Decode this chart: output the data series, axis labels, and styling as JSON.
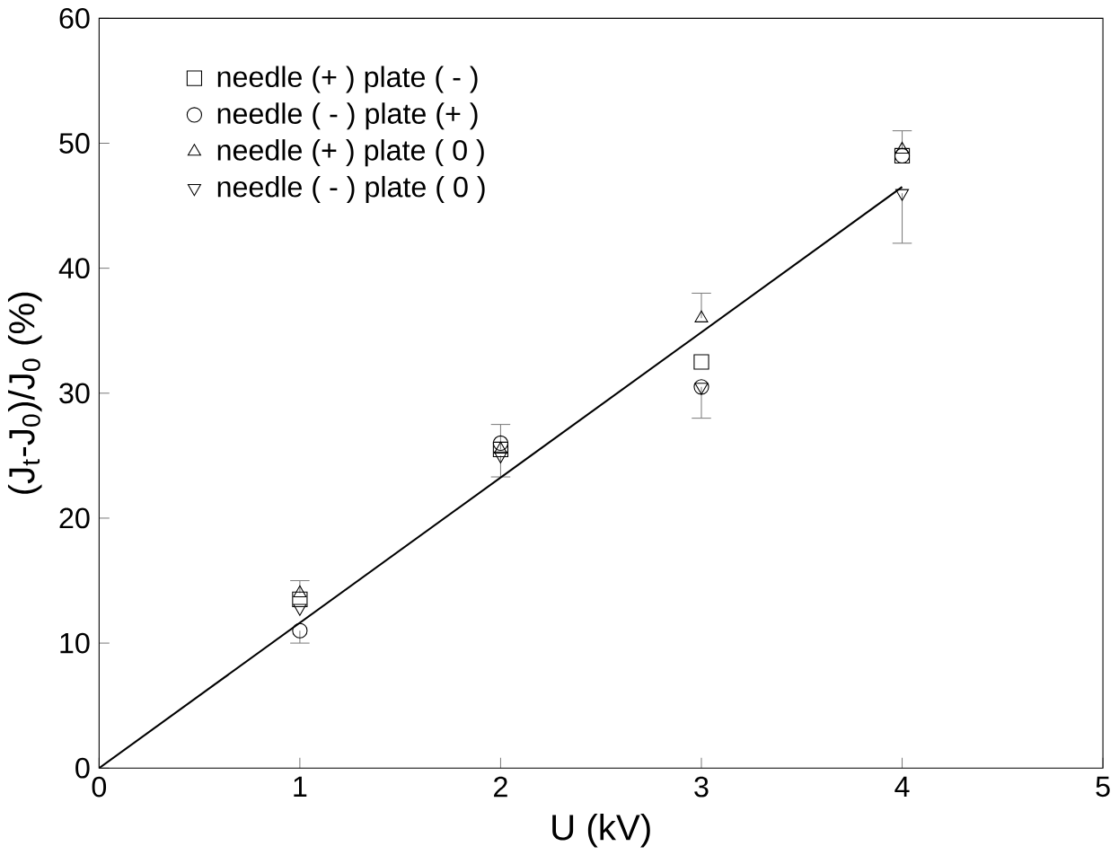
{
  "chart_data": {
    "type": "scatter",
    "xlabel": "U (kV)",
    "ylabel": "(J$_{t}$-J$_{0}$)/J$_{0}$ (%)",
    "xlim": [
      0,
      5
    ],
    "ylim": [
      0,
      60
    ],
    "xticks": [
      0,
      1,
      2,
      3,
      4,
      5
    ],
    "yticks": [
      0,
      10,
      20,
      30,
      40,
      50,
      60
    ],
    "grid": false,
    "legend": "top left",
    "x": [
      1,
      2,
      3,
      4
    ],
    "series": [
      {
        "name": "needle (+ ) plate ( - )",
        "color": "#000000",
        "marker": "square",
        "values": [
          13.5,
          25.5,
          32.5,
          49
        ],
        "errors": [
          null,
          [
            25.5,
            27.5
          ],
          null,
          null
        ]
      },
      {
        "name": "needle ( - ) plate (+ )",
        "color": "#000000",
        "marker": "circle",
        "values": [
          11,
          26,
          30.5,
          49
        ],
        "errors": [
          [
            10,
            11
          ],
          null,
          null,
          null
        ]
      },
      {
        "name": "needle (+ ) plate ( 0 )",
        "color": "#000000",
        "marker": "triangle",
        "values": [
          14,
          25.5,
          36,
          49.5
        ],
        "errors": [
          [
            14,
            15
          ],
          null,
          [
            36,
            38
          ],
          [
            49.5,
            51
          ]
        ]
      },
      {
        "name": "needle ( - ) plate ( 0 )",
        "color": "#000000",
        "marker": "triangle down",
        "values": [
          12.8,
          25,
          30.5,
          46
        ],
        "errors": [
          null,
          [
            23.3,
            25
          ],
          [
            28,
            30.5
          ],
          [
            42,
            46
          ]
        ]
      },
      {
        "type": "line",
        "color": "#000000",
        "x": [
          0,
          4
        ],
        "values": [
          0,
          46.5
        ],
        "marker": "none",
        "line_style": "solid"
      }
    ]
  }
}
